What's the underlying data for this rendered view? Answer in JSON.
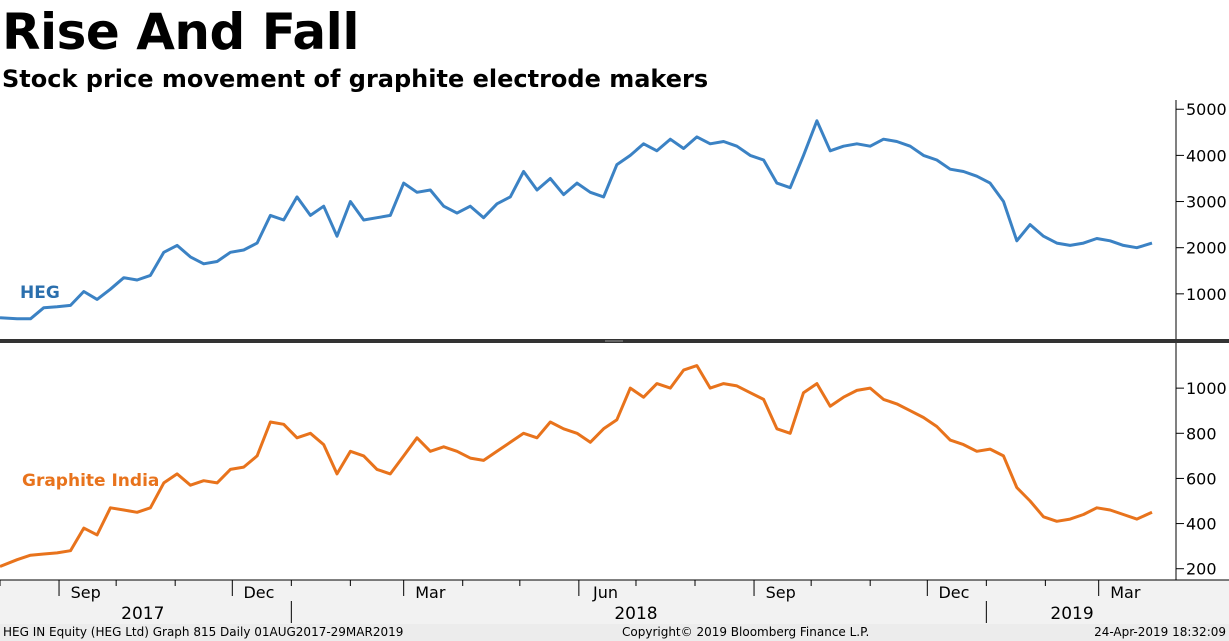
{
  "title": "Rise And Fall",
  "subtitle": "Stock price movement of graphite electrode makers",
  "footer": {
    "left": "HEG IN Equity (HEG Ltd) Graph 815  Daily 01AUG2017-29MAR2019",
    "center": "Copyright© 2019 Bloomberg Finance L.P.",
    "right": "24-Apr-2019 18:32:09"
  },
  "colors": {
    "heg": "#3b82c4",
    "graphite": "#e8731c"
  },
  "chart_data": [
    {
      "type": "line",
      "series": [
        {
          "name": "HEG",
          "color": "#3b82c4",
          "x": [
            "2017-08-01",
            "2017-08-10",
            "2017-08-17",
            "2017-08-24",
            "2017-08-31",
            "2017-09-07",
            "2017-09-14",
            "2017-09-21",
            "2017-09-28",
            "2017-10-05",
            "2017-10-12",
            "2017-10-19",
            "2017-10-26",
            "2017-11-02",
            "2017-11-09",
            "2017-11-16",
            "2017-11-23",
            "2017-11-30",
            "2017-12-07",
            "2017-12-14",
            "2017-12-21",
            "2017-12-28",
            "2018-01-04",
            "2018-01-11",
            "2018-01-18",
            "2018-01-25",
            "2018-02-01",
            "2018-02-08",
            "2018-02-15",
            "2018-02-22",
            "2018-03-01",
            "2018-03-08",
            "2018-03-15",
            "2018-03-22",
            "2018-03-29",
            "2018-04-05",
            "2018-04-12",
            "2018-04-19",
            "2018-04-26",
            "2018-05-03",
            "2018-05-10",
            "2018-05-17",
            "2018-05-24",
            "2018-05-31",
            "2018-06-07",
            "2018-06-14",
            "2018-06-21",
            "2018-06-28",
            "2018-07-05",
            "2018-07-12",
            "2018-07-19",
            "2018-07-26",
            "2018-08-02",
            "2018-08-09",
            "2018-08-16",
            "2018-08-23",
            "2018-08-30",
            "2018-09-06",
            "2018-09-13",
            "2018-09-20",
            "2018-09-27",
            "2018-10-04",
            "2018-10-11",
            "2018-10-18",
            "2018-10-25",
            "2018-11-01",
            "2018-11-08",
            "2018-11-15",
            "2018-11-22",
            "2018-11-29",
            "2018-12-06",
            "2018-12-13",
            "2018-12-20",
            "2018-12-27",
            "2019-01-03",
            "2019-01-10",
            "2019-01-17",
            "2019-01-24",
            "2019-01-31",
            "2019-02-07",
            "2019-02-14",
            "2019-02-21",
            "2019-02-28",
            "2019-03-07",
            "2019-03-14",
            "2019-03-21",
            "2019-03-29"
          ],
          "values": [
            480,
            460,
            460,
            700,
            720,
            750,
            1050,
            880,
            1100,
            1350,
            1300,
            1400,
            1900,
            2050,
            1800,
            1650,
            1700,
            1900,
            1950,
            2100,
            2700,
            2600,
            3100,
            2700,
            2900,
            2250,
            3000,
            2600,
            2650,
            2700,
            3400,
            3200,
            3250,
            2900,
            2750,
            2900,
            2650,
            2950,
            3100,
            3650,
            3250,
            3500,
            3150,
            3400,
            3200,
            3100,
            3800,
            4000,
            4250,
            4100,
            4350,
            4150,
            4400,
            4250,
            4300,
            4200,
            4000,
            3900,
            3400,
            3300,
            4000,
            4750,
            4100,
            4200,
            4250,
            4200,
            4350,
            4300,
            4200,
            4000,
            3900,
            3700,
            3650,
            3550,
            3400,
            3000,
            2150,
            2500,
            2250,
            2100,
            2050,
            2100,
            2200,
            2150,
            2050,
            2000,
            2100
          ]
        }
      ],
      "ylim": [
        0,
        5200
      ],
      "yticks": [
        1000,
        2000,
        3000,
        4000,
        5000
      ]
    },
    {
      "type": "line",
      "series": [
        {
          "name": "Graphite India",
          "color": "#e8731c",
          "x": [
            "2017-08-01",
            "2017-08-10",
            "2017-08-17",
            "2017-08-24",
            "2017-08-31",
            "2017-09-07",
            "2017-09-14",
            "2017-09-21",
            "2017-09-28",
            "2017-10-05",
            "2017-10-12",
            "2017-10-19",
            "2017-10-26",
            "2017-11-02",
            "2017-11-09",
            "2017-11-16",
            "2017-11-23",
            "2017-11-30",
            "2017-12-07",
            "2017-12-14",
            "2017-12-21",
            "2017-12-28",
            "2018-01-04",
            "2018-01-11",
            "2018-01-18",
            "2018-01-25",
            "2018-02-01",
            "2018-02-08",
            "2018-02-15",
            "2018-02-22",
            "2018-03-01",
            "2018-03-08",
            "2018-03-15",
            "2018-03-22",
            "2018-03-29",
            "2018-04-05",
            "2018-04-12",
            "2018-04-19",
            "2018-04-26",
            "2018-05-03",
            "2018-05-10",
            "2018-05-17",
            "2018-05-24",
            "2018-05-31",
            "2018-06-07",
            "2018-06-14",
            "2018-06-21",
            "2018-06-28",
            "2018-07-05",
            "2018-07-12",
            "2018-07-19",
            "2018-07-26",
            "2018-08-02",
            "2018-08-09",
            "2018-08-16",
            "2018-08-23",
            "2018-08-30",
            "2018-09-06",
            "2018-09-13",
            "2018-09-20",
            "2018-09-27",
            "2018-10-04",
            "2018-10-11",
            "2018-10-18",
            "2018-10-25",
            "2018-11-01",
            "2018-11-08",
            "2018-11-15",
            "2018-11-22",
            "2018-11-29",
            "2018-12-06",
            "2018-12-13",
            "2018-12-20",
            "2018-12-27",
            "2019-01-03",
            "2019-01-10",
            "2019-01-17",
            "2019-01-24",
            "2019-01-31",
            "2019-02-07",
            "2019-02-14",
            "2019-02-21",
            "2019-02-28",
            "2019-03-07",
            "2019-03-14",
            "2019-03-21",
            "2019-03-29"
          ],
          "values": [
            210,
            240,
            260,
            265,
            270,
            280,
            380,
            350,
            470,
            460,
            450,
            470,
            580,
            620,
            570,
            590,
            580,
            640,
            650,
            700,
            850,
            840,
            780,
            800,
            750,
            620,
            720,
            700,
            640,
            620,
            700,
            780,
            720,
            740,
            720,
            690,
            680,
            720,
            760,
            800,
            780,
            850,
            820,
            800,
            760,
            820,
            860,
            1000,
            960,
            1020,
            1000,
            1080,
            1100,
            1000,
            1020,
            1010,
            980,
            950,
            820,
            800,
            980,
            1020,
            920,
            960,
            990,
            1000,
            950,
            930,
            900,
            870,
            830,
            770,
            750,
            720,
            730,
            700,
            560,
            500,
            430,
            410,
            420,
            440,
            470,
            460,
            440,
            420,
            450
          ]
        }
      ],
      "ylim": [
        150,
        1200
      ],
      "yticks": [
        200,
        400,
        600,
        800,
        1000
      ]
    }
  ],
  "axis": {
    "x_months": [
      {
        "label": "Sep",
        "date": "2017-09-15"
      },
      {
        "label": "Dec",
        "date": "2017-12-15"
      },
      {
        "label": "Mar",
        "date": "2018-03-15"
      },
      {
        "label": "Jun",
        "date": "2018-06-15"
      },
      {
        "label": "Sep",
        "date": "2018-09-15"
      },
      {
        "label": "Dec",
        "date": "2018-12-15"
      },
      {
        "label": "Mar",
        "date": "2019-03-15"
      }
    ],
    "years": [
      {
        "label": "2017",
        "date": "2017-10-15"
      },
      {
        "label": "2018",
        "date": "2018-07-01"
      },
      {
        "label": "2019",
        "date": "2019-02-15"
      }
    ],
    "year_breaks": [
      "2018-01-01",
      "2019-01-01"
    ]
  }
}
